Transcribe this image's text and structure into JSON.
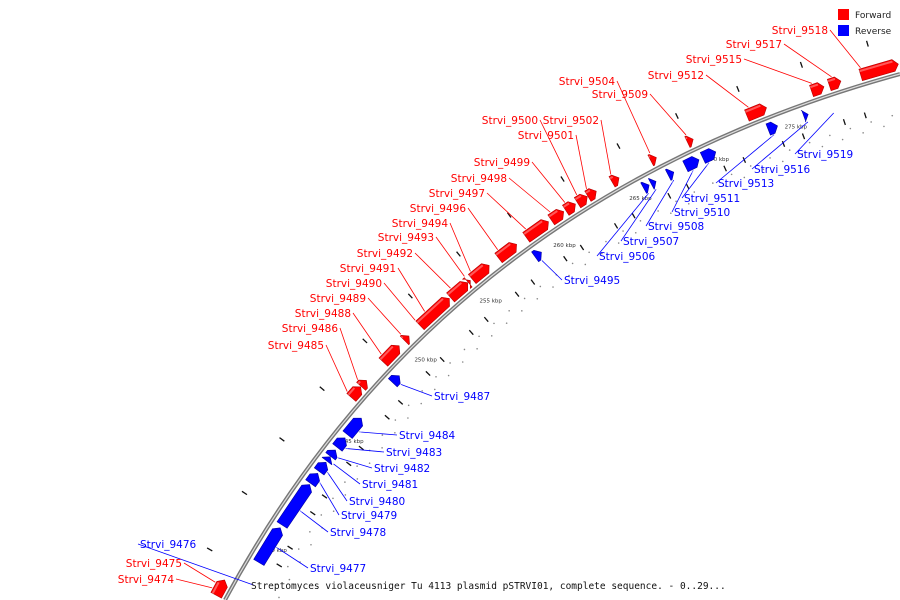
{
  "legend": [
    {
      "label": "Forward",
      "color": "#ff0000"
    },
    {
      "label": "Reverse",
      "color": "#0000ff"
    }
  ],
  "footer_text": "Streptomyces violaceusniger Tu 4113 plasmid pSTRVI01, complete sequence. - 0..29...",
  "scale_labels": [
    "240 kbp",
    "245 kbp",
    "250 kbp",
    "255 kbp",
    "260 kbp",
    "265 kbp",
    "270 kbp",
    "275 kbp"
  ],
  "forward_genes": [
    "Strvi_9474",
    "Strvi_9475",
    "Strvi_9485",
    "Strvi_9486",
    "Strvi_9488",
    "Strvi_9489",
    "Strvi_9490",
    "Strvi_9491",
    "Strvi_9492",
    "Strvi_9493",
    "Strvi_9494",
    "Strvi_9496",
    "Strvi_9497",
    "Strvi_9498",
    "Strvi_9499",
    "Strvi_9500",
    "Strvi_9501",
    "Strvi_9502",
    "Strvi_9504",
    "Strvi_9509",
    "Strvi_9512",
    "Strvi_9515",
    "Strvi_9517",
    "Strvi_9518"
  ],
  "reverse_genes": [
    "Strvi_9476",
    "Strvi_9477",
    "Strvi_9478",
    "Strvi_9479",
    "Strvi_9480",
    "Strvi_9481",
    "Strvi_9482",
    "Strvi_9483",
    "Strvi_9484",
    "Strvi_9487",
    "Strvi_9495",
    "Strvi_9506",
    "Strvi_9507",
    "Strvi_9508",
    "Strvi_9510",
    "Strvi_9511",
    "Strvi_9513",
    "Strvi_9516",
    "Strvi_9519"
  ]
}
